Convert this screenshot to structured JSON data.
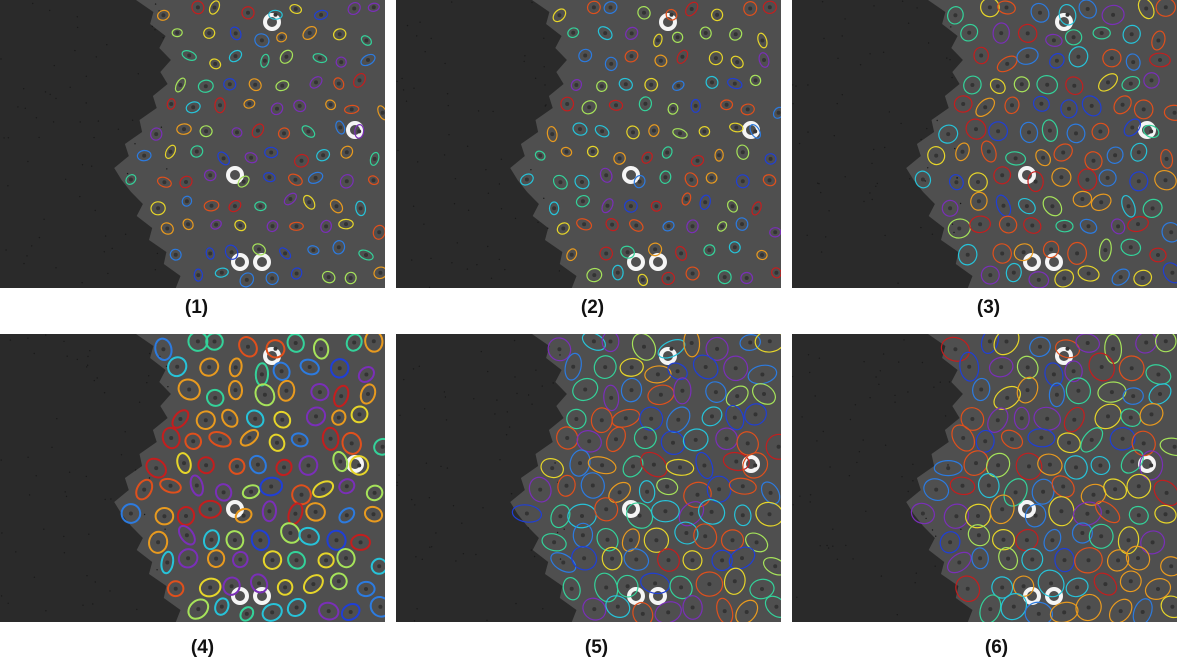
{
  "figure": {
    "panels": [
      {
        "id": "1",
        "label": "(1)"
      },
      {
        "id": "2",
        "label": "(2)"
      },
      {
        "id": "3",
        "label": "(3)"
      },
      {
        "id": "4",
        "label": "(4)"
      },
      {
        "id": "5",
        "label": "(5)"
      },
      {
        "id": "6",
        "label": "(6)"
      }
    ],
    "palette": [
      "#1f3fd6",
      "#2c7be0",
      "#27c3d9",
      "#34d29a",
      "#a6e35a",
      "#e6d52a",
      "#e89a1f",
      "#e0501c",
      "#c41e1e",
      "#7a2fb8"
    ]
  }
}
